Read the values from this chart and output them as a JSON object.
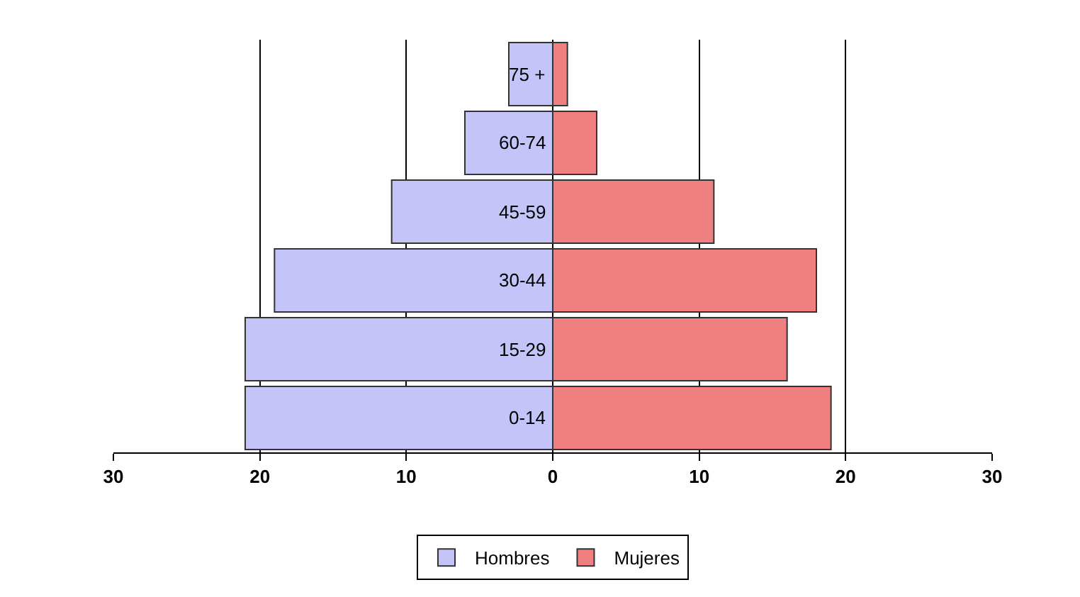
{
  "chart_data": {
    "type": "bar",
    "orientation": "horizontal",
    "stacked": true,
    "categories": [
      "75 +",
      "60-74",
      "45-59",
      "30-44",
      "15-29",
      "0-14"
    ],
    "series": [
      {
        "name": "Hombres",
        "color": "#c4c4f8",
        "values": [
          -3,
          -6,
          -11,
          -19,
          -21,
          -21
        ]
      },
      {
        "name": "Mujeres",
        "color": "#f08080",
        "values": [
          1,
          3,
          11,
          18,
          16,
          19
        ]
      }
    ],
    "xlim": [
      -30,
      30
    ],
    "xticks": [
      {
        "value": -30,
        "label": "30"
      },
      {
        "value": -20,
        "label": "20"
      },
      {
        "value": -10,
        "label": "10"
      },
      0,
      {
        "value": 10,
        "label": "10"
      },
      20,
      30
    ],
    "grid": "x",
    "legend": "bottom"
  }
}
